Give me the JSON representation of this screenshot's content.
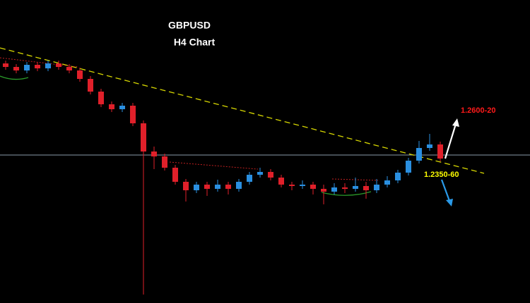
{
  "chart_data": {
    "type": "candlestick",
    "title": "GBPUSD",
    "subtitle": "H4 Chart",
    "ylim": [
      1.181,
      1.31
    ],
    "up_color": "#2a8fe0",
    "down_color": "#e0202a",
    "open": [
      1.283,
      1.2815,
      1.28,
      1.2824,
      1.2809,
      1.283,
      1.2815,
      1.28,
      1.2764,
      1.271,
      1.2656,
      1.2635,
      1.265,
      1.2575,
      1.2455,
      1.2434,
      1.2386,
      1.2326,
      1.229,
      1.2314,
      1.2296,
      1.2314,
      1.2296,
      1.2326,
      1.2356,
      1.2368,
      1.2344,
      1.2314,
      1.2308,
      1.2314,
      1.2296,
      1.2284,
      1.2302,
      1.2296,
      1.2308,
      1.229,
      1.2314,
      1.2332,
      1.2365,
      1.2416,
      1.247,
      1.2485
    ],
    "high": [
      1.2842,
      1.2827,
      1.2836,
      1.2836,
      1.2842,
      1.2842,
      1.2827,
      1.2812,
      1.2776,
      1.2722,
      1.2668,
      1.2662,
      1.2662,
      1.2587,
      1.2476,
      1.2446,
      1.2398,
      1.2338,
      1.2326,
      1.2326,
      1.2335,
      1.2326,
      1.2338,
      1.2368,
      1.2386,
      1.238,
      1.2356,
      1.2326,
      1.2332,
      1.2326,
      1.2314,
      1.232,
      1.232,
      1.2344,
      1.2326,
      1.2338,
      1.235,
      1.2377,
      1.2428,
      1.25,
      1.253,
      1.2497
    ],
    "low": [
      1.2803,
      1.2788,
      1.2788,
      1.2797,
      1.2797,
      1.2803,
      1.2788,
      1.2752,
      1.2698,
      1.2644,
      1.2623,
      1.2623,
      1.2563,
      1.1846,
      1.238,
      1.2374,
      1.2314,
      1.2242,
      1.2278,
      1.2266,
      1.2284,
      1.2272,
      1.2284,
      1.2314,
      1.2344,
      1.2332,
      1.2302,
      1.229,
      1.2296,
      1.2272,
      1.223,
      1.2272,
      1.2278,
      1.2284,
      1.2254,
      1.2278,
      1.2302,
      1.232,
      1.2353,
      1.2404,
      1.2458,
      1.2413
    ],
    "close": [
      1.2815,
      1.28,
      1.2824,
      1.2809,
      1.283,
      1.2815,
      1.28,
      1.2764,
      1.271,
      1.2656,
      1.2635,
      1.265,
      1.2575,
      1.2455,
      1.2434,
      1.2386,
      1.2326,
      1.229,
      1.2314,
      1.2296,
      1.2314,
      1.2296,
      1.2326,
      1.2356,
      1.2368,
      1.2344,
      1.2314,
      1.2308,
      1.2314,
      1.2296,
      1.2284,
      1.2302,
      1.2296,
      1.2308,
      1.229,
      1.2314,
      1.2332,
      1.2365,
      1.2416,
      1.247,
      1.2485,
      1.2425
    ],
    "annotations": [
      {
        "text": "1.2600-20",
        "color": "#ff1a1a"
      },
      {
        "text": "1.2350-60",
        "color": "#ffff00"
      }
    ]
  }
}
